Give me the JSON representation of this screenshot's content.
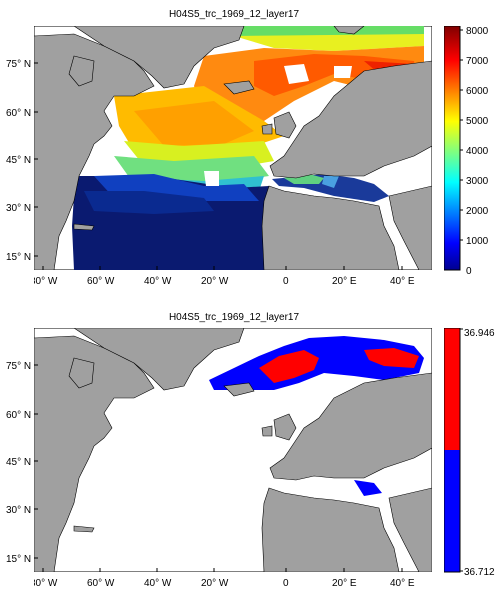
{
  "figure": {
    "top_title": "H04S5_trc_1969_12_layer17",
    "bottom_title": "H04S5_trc_1969_12_layer17"
  },
  "axes": {
    "lon_labels": [
      "80° W",
      "60° W",
      "40° W",
      "20° W",
      "0",
      "20° E",
      "40° E"
    ],
    "lat_labels": [
      "75° N",
      "60° N",
      "45° N",
      "30° N",
      "15° N"
    ]
  },
  "top_colorbar": {
    "ticks": [
      "8000",
      "7000",
      "6000",
      "5000",
      "4000",
      "3000",
      "2000",
      "1000",
      "0"
    ],
    "colormap": "jet",
    "range": [
      0,
      8000
    ]
  },
  "bottom_colorbar": {
    "top_label": "36.946",
    "bottom_label": "36.712",
    "colors": {
      "upper": "#ff0000",
      "lower": "#0000ff"
    }
  },
  "colors": {
    "land": "#a0a0a0",
    "ocean_nodata": "#ffffff",
    "coast": "#000000"
  }
}
